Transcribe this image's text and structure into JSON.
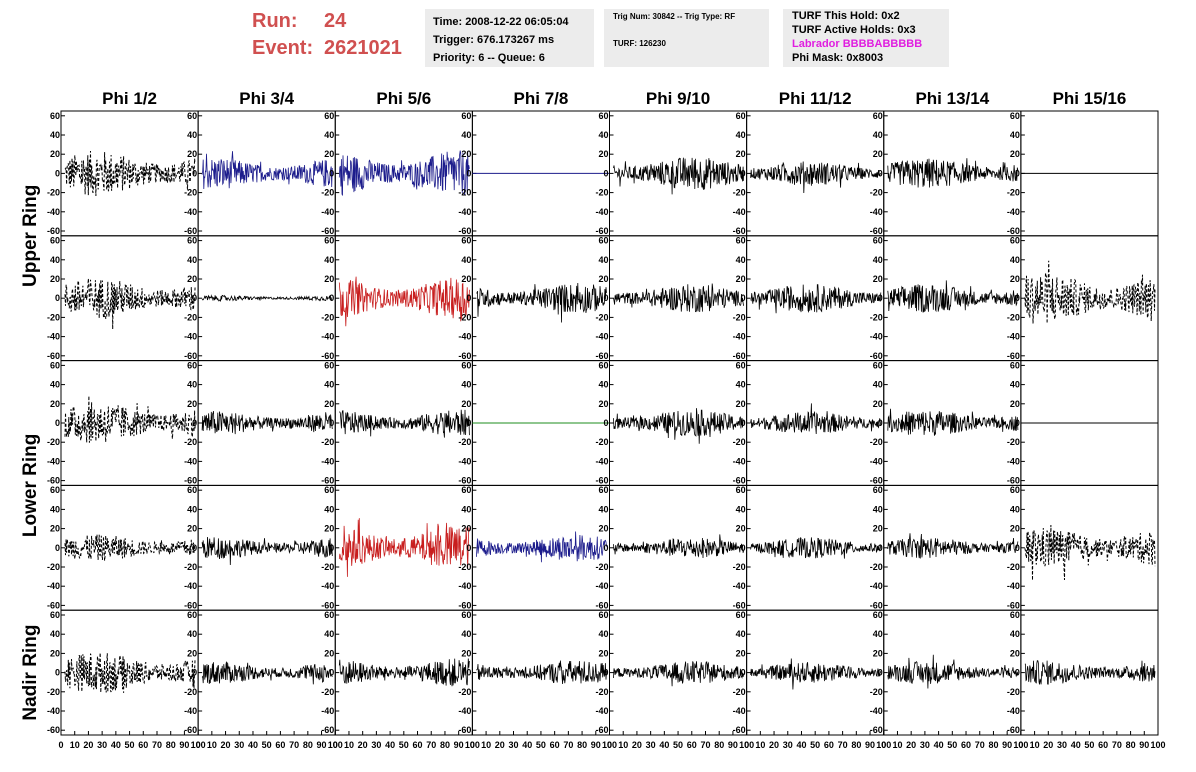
{
  "header": {
    "run_label": "Run:",
    "run_value": "24",
    "event_label": "Event:",
    "event_value": "2621021"
  },
  "info_time": {
    "time": "Time: 2008-12-22 06:05:04",
    "trigger": "Trigger: 676.173267 ms",
    "priority": "Priority: 6 -- Queue: 6"
  },
  "info_trig": {
    "trig": "Trig Num: 30842 -- Trig Type: RF",
    "turf": "TURF: 126230"
  },
  "info_turf": {
    "this_hold": "TURF This Hold: 0x2",
    "active_holds": "TURF Active Holds: 0x3",
    "labrador": "Labrador BBBBABBBBB",
    "phi_mask": "Phi Mask: 0x8003"
  },
  "chart_data": {
    "type": "line",
    "title": "",
    "columns": [
      "Phi 1/2",
      "Phi 3/4",
      "Phi 5/6",
      "Phi 7/8",
      "Phi 9/10",
      "Phi 11/12",
      "Phi 13/14",
      "Phi 15/16"
    ],
    "rings": [
      "Upper Ring",
      "Lower Ring",
      "Nadir Ring"
    ],
    "ylim": [
      -65,
      65
    ],
    "xlim": [
      0,
      100
    ],
    "y_ticks": [
      -60,
      -40,
      -20,
      0,
      20,
      40,
      60
    ],
    "x_ticks": [
      0,
      10,
      20,
      30,
      40,
      50,
      60,
      70,
      80,
      90,
      100
    ],
    "colors": {
      "default": "#000000",
      "blue": "#1c1c8c",
      "red": "#c81e1e",
      "green": "#1e8c1e"
    },
    "panels": [
      [
        {
          "style": "dashed",
          "color": "default",
          "amp": 24
        },
        {
          "style": "solid",
          "color": "blue",
          "amp": 17
        },
        {
          "style": "solid",
          "color": "blue",
          "amp": 24
        },
        {
          "style": "flat",
          "color": "blue",
          "amp": 0
        },
        {
          "style": "solid",
          "color": "default",
          "amp": 18
        },
        {
          "style": "solid",
          "color": "default",
          "amp": 13
        },
        {
          "style": "solid",
          "color": "default",
          "amp": 16
        },
        {
          "style": "flat",
          "color": "default",
          "amp": 0
        }
      ],
      [
        {
          "style": "dashed",
          "color": "default",
          "amp": 22
        },
        {
          "style": "solid",
          "color": "default",
          "amp": 3
        },
        {
          "style": "solid",
          "color": "red",
          "amp": 22
        },
        {
          "style": "solid",
          "color": "default",
          "amp": 16
        },
        {
          "style": "solid",
          "color": "default",
          "amp": 15
        },
        {
          "style": "solid",
          "color": "default",
          "amp": 15
        },
        {
          "style": "solid",
          "color": "default",
          "amp": 15
        },
        {
          "style": "dashed",
          "color": "default",
          "amp": 28
        }
      ],
      [
        {
          "style": "dashed",
          "color": "default",
          "amp": 22
        },
        {
          "style": "solid",
          "color": "default",
          "amp": 13
        },
        {
          "style": "solid",
          "color": "default",
          "amp": 14
        },
        {
          "style": "flat",
          "color": "green",
          "amp": 0
        },
        {
          "style": "solid",
          "color": "default",
          "amp": 14
        },
        {
          "style": "solid",
          "color": "default",
          "amp": 12
        },
        {
          "style": "solid",
          "color": "default",
          "amp": 14
        },
        {
          "style": "flat",
          "color": "default",
          "amp": 0
        }
      ],
      [
        {
          "style": "dashed",
          "color": "default",
          "amp": 14
        },
        {
          "style": "solid",
          "color": "default",
          "amp": 12
        },
        {
          "style": "solid",
          "color": "red",
          "amp": 24
        },
        {
          "style": "solid",
          "color": "blue",
          "amp": 14
        },
        {
          "style": "solid",
          "color": "default",
          "amp": 11
        },
        {
          "style": "solid",
          "color": "default",
          "amp": 11
        },
        {
          "style": "solid",
          "color": "default",
          "amp": 11
        },
        {
          "style": "dashed",
          "color": "default",
          "amp": 22
        }
      ],
      [
        {
          "style": "dashed",
          "color": "default",
          "amp": 22
        },
        {
          "style": "solid",
          "color": "default",
          "amp": 12
        },
        {
          "style": "solid",
          "color": "default",
          "amp": 15
        },
        {
          "style": "solid",
          "color": "default",
          "amp": 13
        },
        {
          "style": "solid",
          "color": "default",
          "amp": 12
        },
        {
          "style": "solid",
          "color": "default",
          "amp": 11
        },
        {
          "style": "solid",
          "color": "default",
          "amp": 12
        },
        {
          "style": "solid",
          "color": "default",
          "amp": 13
        }
      ]
    ]
  }
}
